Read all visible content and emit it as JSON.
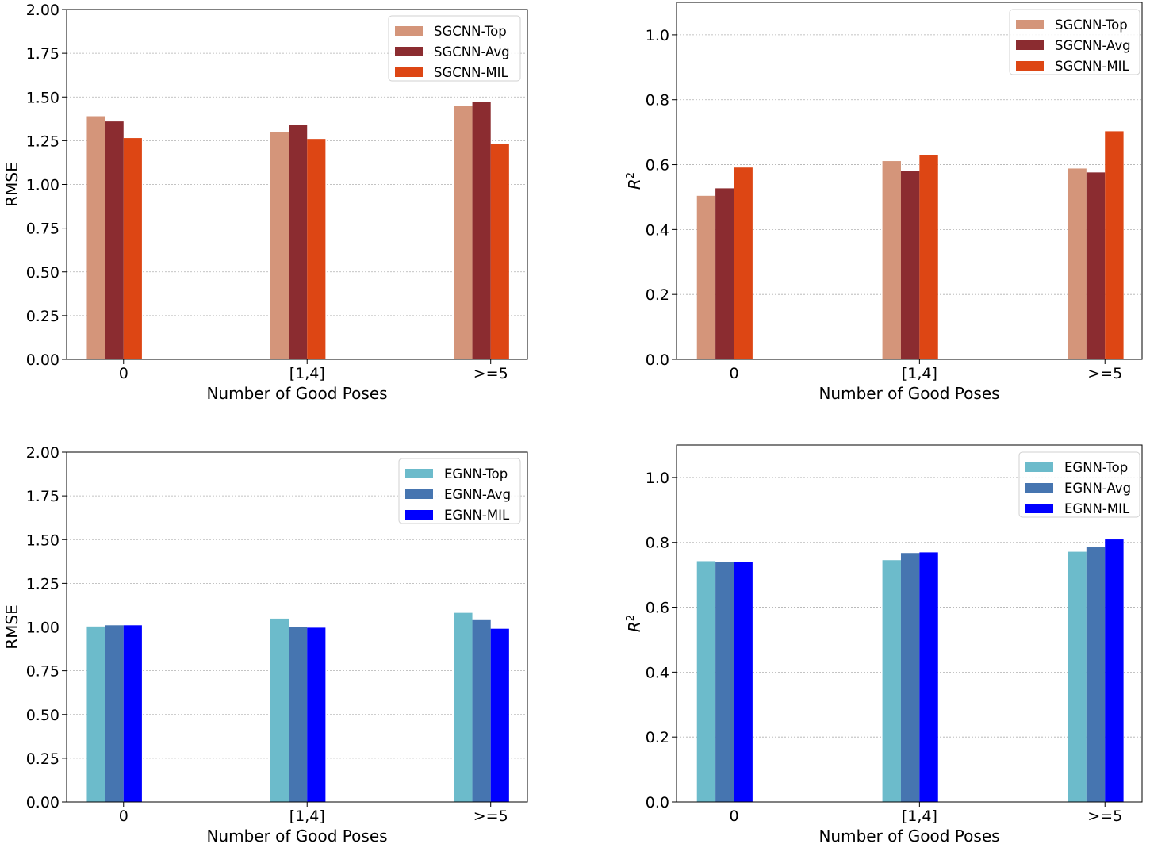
{
  "chart_data": [
    {
      "type": "bar",
      "title": "",
      "xlabel": "Number of Good Poses",
      "ylabel": "RMSE",
      "categories": [
        "0",
        "[1,4]",
        ">=5"
      ],
      "ylim": [
        0,
        2.0
      ],
      "yticks": [
        "0.00",
        "0.25",
        "0.50",
        "0.75",
        "1.00",
        "1.25",
        "1.50",
        "1.75",
        "2.00"
      ],
      "ytick_values": [
        0,
        0.25,
        0.5,
        0.75,
        1.0,
        1.25,
        1.5,
        1.75,
        2.0
      ],
      "grid": true,
      "legend_position": "top-right",
      "series": [
        {
          "name": "SGCNN-Top",
          "color": "#D4957A",
          "values": [
            1.39,
            1.3,
            1.45
          ]
        },
        {
          "name": "SGCNN-Avg",
          "color": "#8B2C30",
          "values": [
            1.36,
            1.34,
            1.47
          ]
        },
        {
          "name": "SGCNN-MIL",
          "color": "#DD4614",
          "values": [
            1.265,
            1.26,
            1.23
          ]
        }
      ]
    },
    {
      "type": "bar",
      "title": "",
      "xlabel": "Number of Good Poses",
      "ylabel": "R2",
      "categories": [
        "0",
        "[1,4]",
        ">=5"
      ],
      "ylim": [
        0,
        1.1
      ],
      "yticks": [
        "0.0",
        "0.2",
        "0.4",
        "0.6",
        "0.8",
        "1.0"
      ],
      "ytick_values": [
        0,
        0.2,
        0.4,
        0.6,
        0.8,
        1.0
      ],
      "grid": true,
      "legend_position": "top-right",
      "series": [
        {
          "name": "SGCNN-Top",
          "color": "#D4957A",
          "values": [
            0.504,
            0.611,
            0.588
          ]
        },
        {
          "name": "SGCNN-Avg",
          "color": "#8B2C30",
          "values": [
            0.527,
            0.581,
            0.576
          ]
        },
        {
          "name": "SGCNN-MIL",
          "color": "#DD4614",
          "values": [
            0.591,
            0.63,
            0.703
          ]
        }
      ]
    },
    {
      "type": "bar",
      "title": "",
      "xlabel": "Number of Good Poses",
      "ylabel": "RMSE",
      "categories": [
        "0",
        "[1,4]",
        ">=5"
      ],
      "ylim": [
        0,
        2.0
      ],
      "yticks": [
        "0.00",
        "0.25",
        "0.50",
        "0.75",
        "1.00",
        "1.25",
        "1.50",
        "1.75",
        "2.00"
      ],
      "ytick_values": [
        0,
        0.25,
        0.5,
        0.75,
        1.0,
        1.25,
        1.5,
        1.75,
        2.0
      ],
      "grid": true,
      "legend_position": "top-right",
      "series": [
        {
          "name": "EGNN-Top",
          "color": "#6CBBCB",
          "values": [
            1.003,
            1.048,
            1.081
          ]
        },
        {
          "name": "EGNN-Avg",
          "color": "#4675B0",
          "values": [
            1.01,
            1.002,
            1.044
          ]
        },
        {
          "name": "EGNN-MIL",
          "color": "#0000FF",
          "values": [
            1.01,
            0.996,
            0.99
          ]
        }
      ]
    },
    {
      "type": "bar",
      "title": "",
      "xlabel": "Number of Good Poses",
      "ylabel": "R2",
      "categories": [
        "0",
        "[1,4]",
        ">=5"
      ],
      "ylim": [
        0,
        1.1
      ],
      "yticks": [
        "0.0",
        "0.2",
        "0.4",
        "0.6",
        "0.8",
        "1.0"
      ],
      "ytick_values": [
        0,
        0.2,
        0.4,
        0.6,
        0.8,
        1.0
      ],
      "grid": true,
      "legend_position": "top-right",
      "series": [
        {
          "name": "EGNN-Top",
          "color": "#6CBBCB",
          "values": [
            0.742,
            0.745,
            0.771
          ]
        },
        {
          "name": "EGNN-Avg",
          "color": "#4675B0",
          "values": [
            0.739,
            0.767,
            0.786
          ]
        },
        {
          "name": "EGNN-MIL",
          "color": "#0000FF",
          "values": [
            0.739,
            0.769,
            0.809
          ]
        }
      ]
    }
  ]
}
